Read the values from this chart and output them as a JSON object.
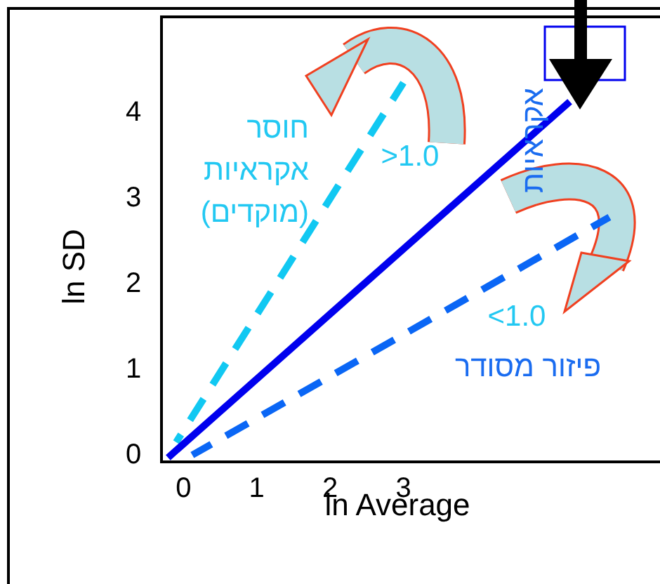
{
  "chart_data": {
    "type": "line",
    "xlabel": "ln Average",
    "ylabel": "ln SD",
    "xlim": [
      -0.3,
      6.5
    ],
    "ylim": [
      -0.1,
      5.1
    ],
    "xticks": [
      0,
      1,
      2,
      3
    ],
    "yticks": [
      0,
      1,
      2,
      3,
      4
    ],
    "grid": false,
    "series": [
      {
        "color": "#11c8f2",
        "line_style": "dashed",
        "x": [
          -0.1,
          3.0
        ],
        "values": [
          0.13,
          4.33
        ]
      },
      {
        "color": "#0000ee",
        "line_style": "solid",
        "x": [
          -0.21,
          5.27
        ],
        "values": [
          -0.05,
          4.11
        ]
      },
      {
        "color": "#0a66f5",
        "line_style": "dashed",
        "x": [
          0.12,
          5.81
        ],
        "values": [
          -0.02,
          2.76
        ]
      }
    ],
    "annotations": [
      "חוסר\nאקראיות\n(מוקדים)",
      ">1.0",
      "<1.0",
      "פיזור מסודר",
      "אקראיות"
    ]
  }
}
